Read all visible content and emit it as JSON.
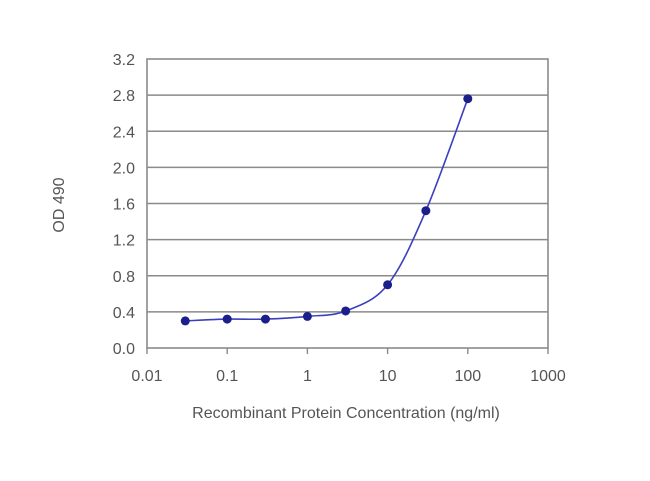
{
  "chart_data": {
    "type": "scatter",
    "title": "",
    "xlabel": "Recombinant Protein Concentration (ng/ml)",
    "ylabel": "OD 490",
    "x_scale": "log",
    "xlim": [
      0.01,
      1000
    ],
    "ylim": [
      0.0,
      3.2
    ],
    "x_ticks": [
      "0.01",
      "0.1",
      "1",
      "10",
      "100",
      "1000"
    ],
    "y_ticks": [
      "0.0",
      "0.4",
      "0.8",
      "1.2",
      "1.6",
      "2.0",
      "2.4",
      "2.8",
      "3.2"
    ],
    "grid": "horizontal",
    "series": [
      {
        "x": [
          0.03,
          0.1,
          0.3,
          1,
          3,
          10,
          30,
          100
        ],
        "y": [
          0.3,
          0.32,
          0.32,
          0.35,
          0.41,
          0.7,
          1.52,
          2.76
        ]
      }
    ],
    "fit_curve": true,
    "colors": {
      "line": "#3b3fbf",
      "marker": "#1a1f8a",
      "grid": "#8a8a8a",
      "frame": "#8a8a8a",
      "text": "#555555"
    }
  }
}
